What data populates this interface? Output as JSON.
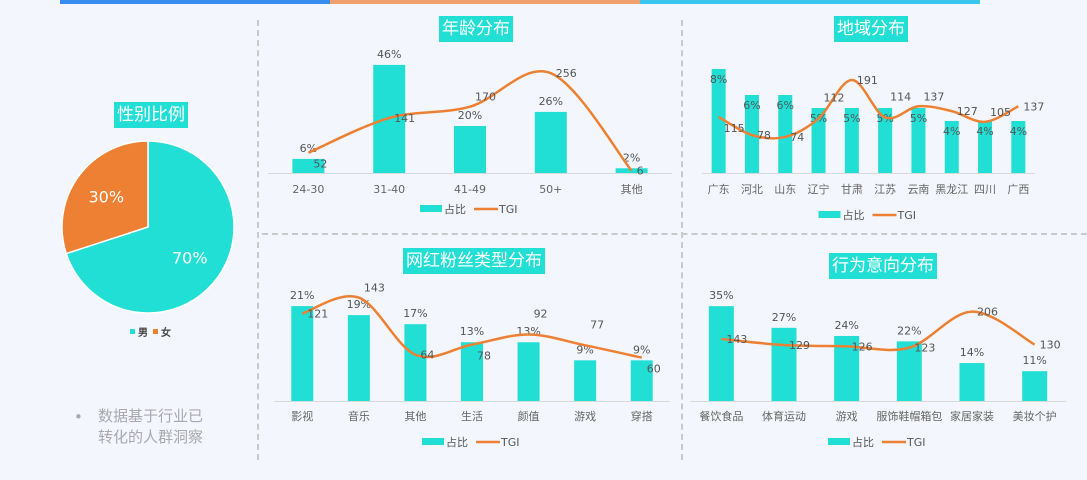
{
  "colors": {
    "bar": "#22dfd6",
    "line": "#ee8033",
    "background": "#f3f6fc"
  },
  "side_note": {
    "bullet": "•",
    "line1": "数据基于行业已",
    "line2": "转化的人群洞察"
  },
  "chart_data": [
    {
      "type": "pie",
      "title": "性别比例",
      "slices": [
        {
          "name": "男",
          "value": 70,
          "label": "70%",
          "color": "#22dfd6"
        },
        {
          "name": "女",
          "value": 30,
          "label": "30%",
          "color": "#ee8033"
        }
      ],
      "legend_placement": "bottom"
    },
    {
      "type": "bar+line",
      "title": "年龄分布",
      "categories": [
        "24-30",
        "31-40",
        "41-49",
        "50+",
        "其他"
      ],
      "series": [
        {
          "name": "占比",
          "kind": "bar",
          "values": [
            6,
            46,
            20,
            26,
            2
          ],
          "labels": [
            "6%",
            "46%",
            "20%",
            "26%",
            "2%"
          ]
        },
        {
          "name": "TGI",
          "kind": "line",
          "smooth": true,
          "values": [
            52,
            141,
            170,
            256,
            6
          ]
        }
      ],
      "legend_placement": "bottom"
    },
    {
      "type": "bar+line",
      "title": "地域分布",
      "categories": [
        "广东",
        "河北",
        "山东",
        "辽宁",
        "甘肃",
        "江苏",
        "云南",
        "黑龙江",
        "四川",
        "广西"
      ],
      "series": [
        {
          "name": "占比",
          "kind": "bar",
          "values": [
            8,
            6,
            6,
            5,
            5,
            5,
            5,
            4,
            4,
            4
          ],
          "labels": [
            "8%",
            "6%",
            "6%",
            "5%",
            "5%",
            "5%",
            "5%",
            "4%",
            "4%",
            "4%"
          ]
        },
        {
          "name": "TGI",
          "kind": "line",
          "smooth": true,
          "values": [
            115,
            78,
            74,
            112,
            191,
            114,
            137,
            127,
            105,
            137
          ]
        }
      ],
      "legend_placement": "bottom"
    },
    {
      "type": "bar+line",
      "title": "网红粉丝类型分布",
      "categories": [
        "影视",
        "音乐",
        "其他",
        "生活",
        "颜值",
        "游戏",
        "穿搭"
      ],
      "series": [
        {
          "name": "占比",
          "kind": "bar",
          "values": [
            21,
            19,
            17,
            13,
            13,
            9,
            9
          ],
          "labels": [
            "21%",
            "19%",
            "17%",
            "13%",
            "13%",
            "9%",
            "9%"
          ]
        },
        {
          "name": "TGI",
          "kind": "line",
          "smooth": true,
          "values": [
            121,
            143,
            64,
            78,
            92,
            77,
            60
          ]
        }
      ],
      "legend_placement": "bottom"
    },
    {
      "type": "bar+line",
      "title": "行为意向分布",
      "categories": [
        "餐饮食品",
        "体育运动",
        "游戏",
        "服饰鞋帽箱包",
        "家居家装",
        "美妆个护"
      ],
      "series": [
        {
          "name": "占比",
          "kind": "bar",
          "values": [
            35,
            27,
            24,
            22,
            14,
            11
          ],
          "labels": [
            "35%",
            "27%",
            "24%",
            "22%",
            "14%",
            "11%"
          ]
        },
        {
          "name": "TGI",
          "kind": "line",
          "smooth": true,
          "values": [
            143,
            129,
            126,
            123,
            206,
            130
          ]
        }
      ],
      "legend_placement": "bottom"
    }
  ]
}
